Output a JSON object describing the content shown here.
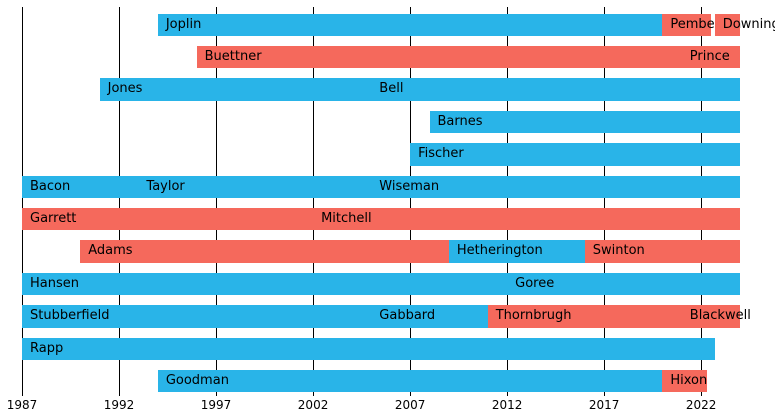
{
  "chart_data": {
    "type": "timeline",
    "title": "",
    "x_axis": {
      "min_year": 1987,
      "max_year": 2024,
      "tick_years": [
        1987,
        1992,
        1997,
        2002,
        2007,
        2012,
        2017,
        2022
      ]
    },
    "legend": "none",
    "grid": "vertical-black-lines",
    "colors": {
      "blue": "#29b4e8",
      "red": "#f5695c"
    },
    "rows": [
      {
        "segments": [
          {
            "label": "Joplin",
            "color": "blue",
            "start": 1994,
            "end": 2020
          },
          {
            "label": "Pemberton",
            "color": "red",
            "start": 2020,
            "end": 2022.5
          },
          {
            "label": "Downing",
            "color": "red",
            "start": 2022.7,
            "end": 2024
          }
        ]
      },
      {
        "segments": [
          {
            "label": "Buettner",
            "color": "red",
            "start": 1996,
            "end": 2021
          },
          {
            "label": "Prince",
            "color": "red",
            "start": 2021,
            "end": 2024
          }
        ]
      },
      {
        "segments": [
          {
            "label": "Jones",
            "color": "blue",
            "start": 1991,
            "end": 2005
          },
          {
            "label": "Bell",
            "color": "blue",
            "start": 2005,
            "end": 2024
          }
        ]
      },
      {
        "segments": [
          {
            "label": "Barnes",
            "color": "blue",
            "start": 2008,
            "end": 2024
          }
        ]
      },
      {
        "segments": [
          {
            "label": "Fischer",
            "color": "blue",
            "start": 2007,
            "end": 2024
          }
        ]
      },
      {
        "segments": [
          {
            "label": "Bacon",
            "color": "blue",
            "start": 1987,
            "end": 1993
          },
          {
            "label": "Taylor",
            "color": "blue",
            "start": 1993,
            "end": 2005
          },
          {
            "label": "Wiseman",
            "color": "blue",
            "start": 2005,
            "end": 2024
          }
        ]
      },
      {
        "segments": [
          {
            "label": "Garrett",
            "color": "red",
            "start": 1987,
            "end": 2002
          },
          {
            "label": "Mitchell",
            "color": "red",
            "start": 2002,
            "end": 2024
          }
        ]
      },
      {
        "segments": [
          {
            "label": "Adams",
            "color": "red",
            "start": 1990,
            "end": 2009
          },
          {
            "label": "Hetherington",
            "color": "blue",
            "start": 2009,
            "end": 2016
          },
          {
            "label": "Swinton",
            "color": "red",
            "start": 2016,
            "end": 2024
          }
        ]
      },
      {
        "segments": [
          {
            "label": "Hansen",
            "color": "blue",
            "start": 1987,
            "end": 2012
          },
          {
            "label": "Goree",
            "color": "blue",
            "start": 2012,
            "end": 2024
          }
        ]
      },
      {
        "segments": [
          {
            "label": "Stubberfield",
            "color": "blue",
            "start": 1987,
            "end": 2005
          },
          {
            "label": "Gabbard",
            "color": "blue",
            "start": 2005,
            "end": 2011
          },
          {
            "label": "Thornbrugh",
            "color": "red",
            "start": 2011,
            "end": 2021
          },
          {
            "label": "Blackwell",
            "color": "red",
            "start": 2021,
            "end": 2024
          }
        ]
      },
      {
        "segments": [
          {
            "label": "Rapp",
            "color": "blue",
            "start": 1987,
            "end": 2022.7
          }
        ]
      },
      {
        "segments": [
          {
            "label": "Goodman",
            "color": "blue",
            "start": 1994,
            "end": 2020
          },
          {
            "label": "Hixon",
            "color": "red",
            "start": 2020,
            "end": 2022.3
          }
        ]
      }
    ]
  }
}
